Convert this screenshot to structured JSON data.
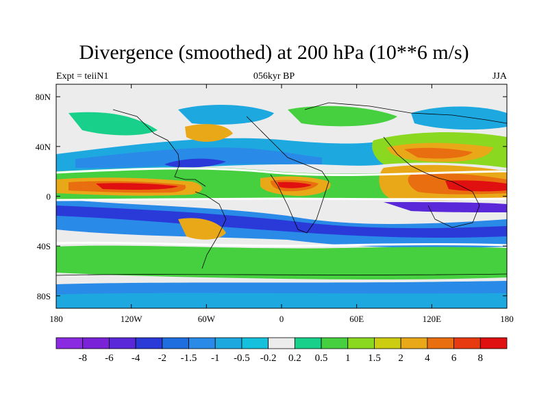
{
  "title": "Divergence (smoothed) at 200 hPa (10**6 m/s)",
  "left_subtitle": "Expt = teiiN1",
  "center_subtitle": "056kyr BP",
  "right_subtitle": "JJA",
  "map": {
    "lon_ticks": [
      "180",
      "120W",
      "60W",
      "0",
      "60E",
      "120E",
      "180"
    ],
    "lat_ticks": [
      "80N",
      "40N",
      "0",
      "40S",
      "80S"
    ]
  },
  "colorbar": {
    "labels": [
      "-8",
      "-6",
      "-4",
      "-2",
      "-1.5",
      "-1",
      "-0.5",
      "-0.2",
      "0.2",
      "0.5",
      "1",
      "1.5",
      "2",
      "4",
      "6",
      "8"
    ],
    "colors": [
      "#8a2be2",
      "#7a22d8",
      "#5a28d8",
      "#2a3ad8",
      "#1f6ee0",
      "#2a8ae8",
      "#1ea8e0",
      "#14c0dc",
      "#ececec",
      "#18d08a",
      "#46d040",
      "#8ad820",
      "#cccc10",
      "#e8a818",
      "#e86e10",
      "#e83a10",
      "#e01010"
    ]
  }
}
